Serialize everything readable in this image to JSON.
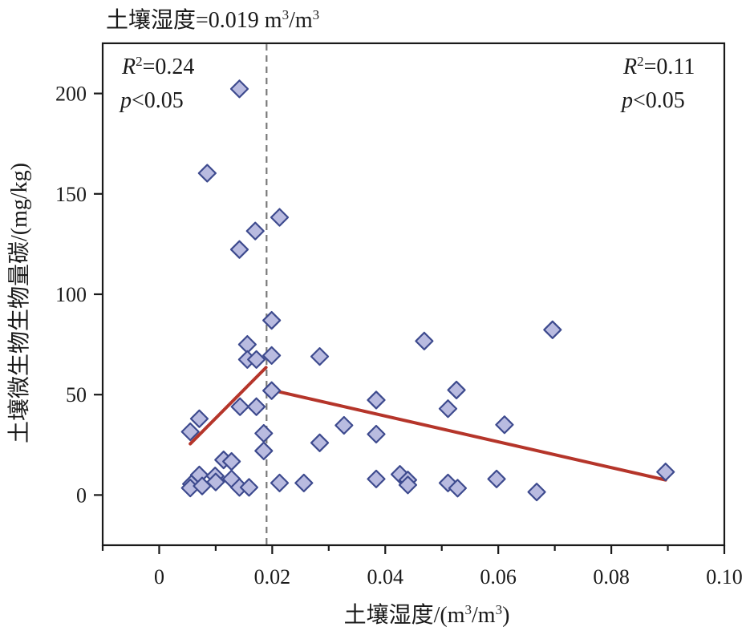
{
  "chart_data": {
    "type": "scatter",
    "title": "土壤湿度=0.019 m³/m³",
    "title_parts": {
      "prefix": "土壤湿度=0.019 m",
      "sup1": "3",
      "mid": "/m",
      "sup2": "3"
    },
    "xlabel": "土壤湿度/(m³/m³)",
    "xlabel_parts": {
      "prefix": "土壤湿度/(m",
      "sup1": "3",
      "mid": "/m",
      "sup2": "3",
      "suffix": ")"
    },
    "ylabel": "土壤微生物生物量碳/(mg/kg)",
    "xlim": [
      -0.01,
      0.1
    ],
    "ylim": [
      -25,
      225
    ],
    "xticks": [
      0,
      0.02,
      0.04,
      0.06,
      0.08,
      0.1
    ],
    "xtick_labels": [
      "0",
      "0.02",
      "0.04",
      "0.06",
      "0.08",
      "0.10"
    ],
    "xminor_ticks": [
      -0.01,
      0.01,
      0.03,
      0.05,
      0.07,
      0.09
    ],
    "yticks": [
      0,
      50,
      100,
      150,
      200
    ],
    "ytick_labels": [
      "0",
      "50",
      "100",
      "150",
      "200"
    ],
    "grid": false,
    "threshold": {
      "x": 0.019,
      "style": "dashed",
      "color": "#7a7a7a"
    },
    "series": [
      {
        "name": "observations",
        "marker": "diamond",
        "fill": "#b9bbe0",
        "stroke": "#3d4a8e",
        "points": [
          [
            0.0142,
            202.3
          ],
          [
            0.0085,
            160.3
          ],
          [
            0.0213,
            138.3
          ],
          [
            0.017,
            131.5
          ],
          [
            0.0142,
            122.3
          ],
          [
            0.0199,
            87.0
          ],
          [
            0.0156,
            75.0
          ],
          [
            0.0156,
            67.5
          ],
          [
            0.0172,
            67.5
          ],
          [
            0.0199,
            69.5
          ],
          [
            0.0199,
            52.0
          ],
          [
            0.0143,
            44.0
          ],
          [
            0.0172,
            44.0
          ],
          [
            0.0071,
            38.0
          ],
          [
            0.0055,
            31.5
          ],
          [
            0.0185,
            30.7
          ],
          [
            0.0185,
            22.0
          ],
          [
            0.0114,
            17.5
          ],
          [
            0.0128,
            16.7
          ],
          [
            0.0071,
            10.0
          ],
          [
            0.0057,
            5.5
          ],
          [
            0.0055,
            3.5
          ],
          [
            0.0076,
            4.5
          ],
          [
            0.0099,
            9.5
          ],
          [
            0.01,
            6.5
          ],
          [
            0.0128,
            8.0
          ],
          [
            0.0142,
            3.8
          ],
          [
            0.0159,
            3.8
          ],
          [
            0.0213,
            6.0
          ],
          [
            0.0256,
            6.0
          ],
          [
            0.0284,
            69.0
          ],
          [
            0.0469,
            76.7
          ],
          [
            0.0696,
            82.3
          ],
          [
            0.0526,
            52.3
          ],
          [
            0.0511,
            43.0
          ],
          [
            0.0384,
            47.3
          ],
          [
            0.0327,
            34.7
          ],
          [
            0.0284,
            26.0
          ],
          [
            0.0384,
            30.3
          ],
          [
            0.0611,
            35.0
          ],
          [
            0.0384,
            8.0
          ],
          [
            0.0426,
            10.3
          ],
          [
            0.044,
            7.5
          ],
          [
            0.044,
            5.0
          ],
          [
            0.0511,
            6.0
          ],
          [
            0.0528,
            3.4
          ],
          [
            0.0597,
            8.0
          ],
          [
            0.0668,
            1.5
          ],
          [
            0.0896,
            11.5
          ]
        ]
      }
    ],
    "fits": [
      {
        "name": "fit-below-threshold",
        "color": "#b5352a",
        "x": [
          0.0055,
          0.0189
        ],
        "y": [
          25.5,
          63.5
        ],
        "r2_label": "R",
        "r2_sup": "2",
        "r2_value": "=0.24",
        "p_label": "p",
        "p_value": "<0.05",
        "annotation_position": "top-left"
      },
      {
        "name": "fit-above-threshold",
        "color": "#b5352a",
        "x": [
          0.0203,
          0.0896
        ],
        "y": [
          52.0,
          7.5
        ],
        "r2_label": "R",
        "r2_sup": "2",
        "r2_value": "=0.11",
        "p_label": "p",
        "p_value": "<0.05",
        "annotation_position": "top-right"
      }
    ],
    "legend": "none"
  }
}
